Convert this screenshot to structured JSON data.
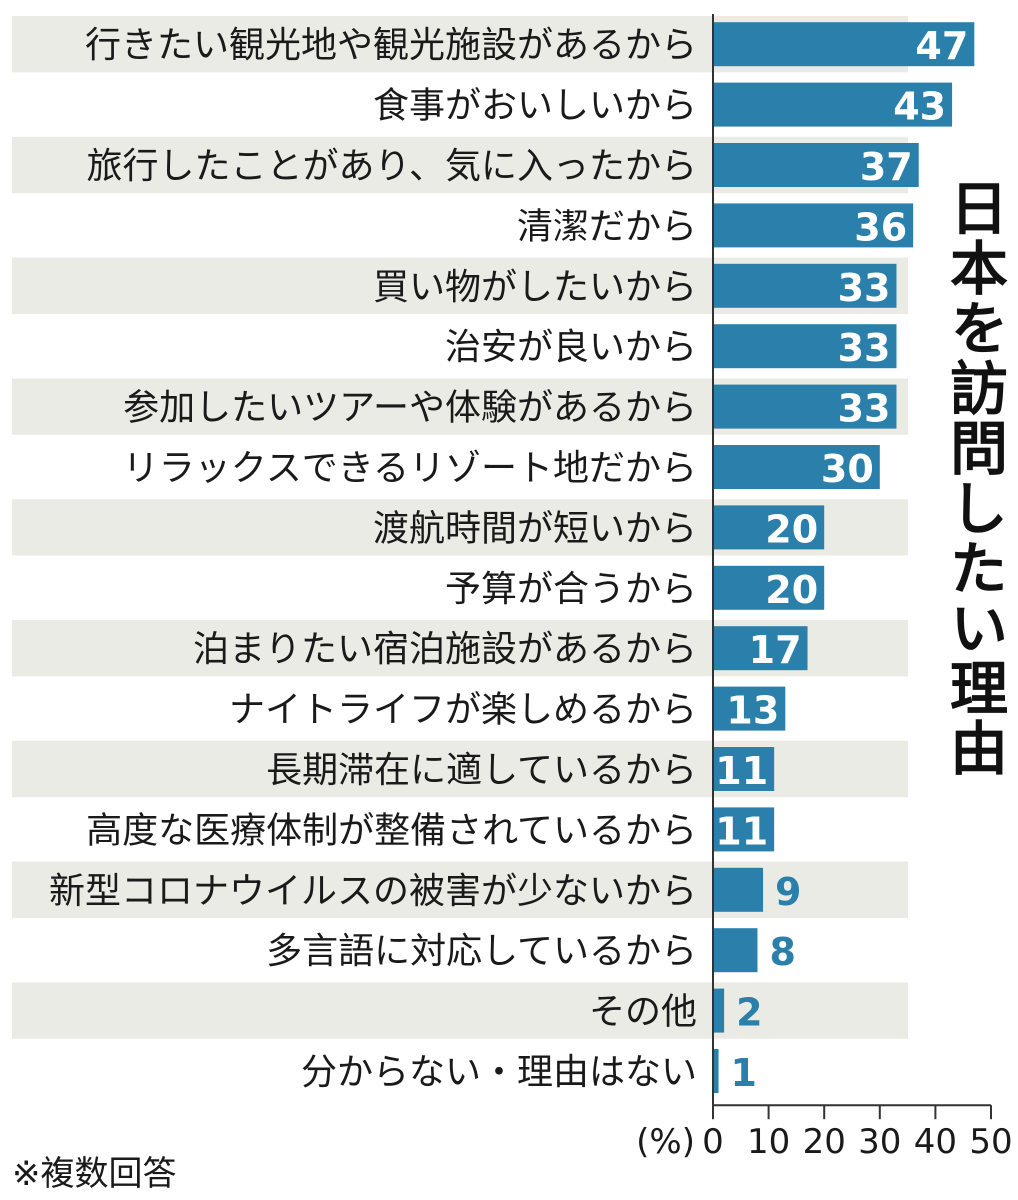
{
  "chart_data": {
    "type": "bar",
    "orientation": "horizontal",
    "title": "日本を訪問したい理由",
    "note": "※複数回答",
    "unit_label": "(%)",
    "categories": [
      "行きたい観光地や観光施設があるから",
      "食事がおいしいから",
      "旅行したことがあり、気に入ったから",
      "清潔だから",
      "買い物がしたいから",
      "治安が良いから",
      "参加したいツアーや体験があるから",
      "リラックスできるリゾート地だから",
      "渡航時間が短いから",
      "予算が合うから",
      "泊まりたい宿泊施設があるから",
      "ナイトライフが楽しめるから",
      "長期滞在に適しているから",
      "高度な医療体制が整備されているから",
      "新型コロナウイルスの被害が少ないから",
      "多言語に対応しているから",
      "その他",
      "分からない・理由はない"
    ],
    "values": [
      47,
      43,
      37,
      36,
      33,
      33,
      33,
      30,
      20,
      20,
      17,
      13,
      11,
      11,
      9,
      8,
      2,
      1
    ],
    "xlim": [
      0,
      50
    ],
    "xticks": [
      0,
      10,
      20,
      30,
      40,
      50
    ],
    "grid": false,
    "colors": {
      "bar": "#2a7fab",
      "band": "#ebebe6",
      "value_inside": "#ffffff",
      "value_outside": "#2a7fab"
    }
  }
}
